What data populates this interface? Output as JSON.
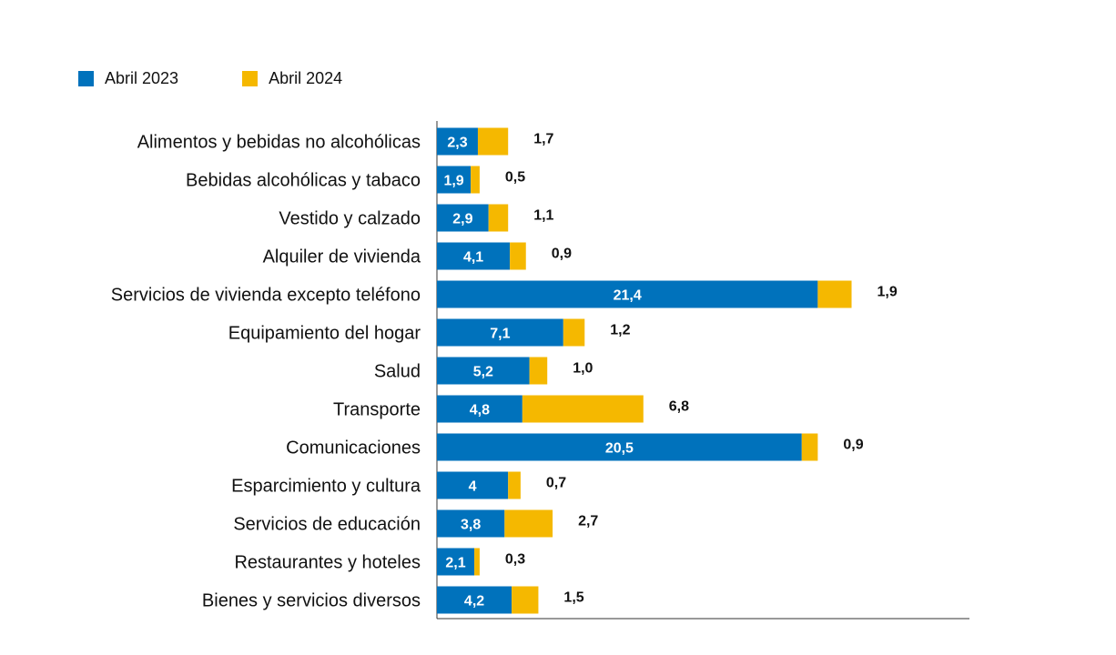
{
  "chart_data": {
    "type": "bar",
    "orientation": "horizontal",
    "stacked": true,
    "title": "",
    "xlabel": "",
    "ylabel": "",
    "categories": [
      "Alimentos y bebidas no alcohólicas",
      "Bebidas alcohólicas y tabaco",
      "Vestido y calzado",
      "Alquiler de vivienda",
      "Servicios de vivienda excepto teléfono",
      "Equipamiento del hogar",
      "Salud",
      "Transporte",
      "Comunicaciones",
      "Esparcimiento y cultura",
      "Servicios de educación",
      "Restaurantes y hoteles",
      "Bienes y servicios diversos"
    ],
    "series": [
      {
        "name": "Abril 2023",
        "color": "#0072bc",
        "values": [
          2.3,
          1.9,
          2.9,
          4.1,
          21.4,
          7.1,
          5.2,
          4.8,
          20.5,
          4,
          3.8,
          2.1,
          4.2
        ],
        "labels": [
          "2,3",
          "1,9",
          "2,9",
          "4,1",
          "21,4",
          "7,1",
          "5,2",
          "4,8",
          "20,5",
          "4",
          "3,8",
          "2,1",
          "4,2"
        ]
      },
      {
        "name": "Abril 2024",
        "color": "#f5b800",
        "values": [
          1.7,
          0.5,
          1.1,
          0.9,
          1.9,
          1.2,
          1.0,
          6.8,
          0.9,
          0.7,
          2.7,
          0.3,
          1.5
        ],
        "labels": [
          "1,7",
          "0,5",
          "1,1",
          "0,9",
          "1,9",
          "1,2",
          "1,0",
          "6,8",
          "0,9",
          "0,7",
          "2,7",
          "0,3",
          "1,5"
        ]
      }
    ],
    "xlim": [
      0,
      30
    ],
    "grid": false,
    "legend_position": "top-left"
  }
}
